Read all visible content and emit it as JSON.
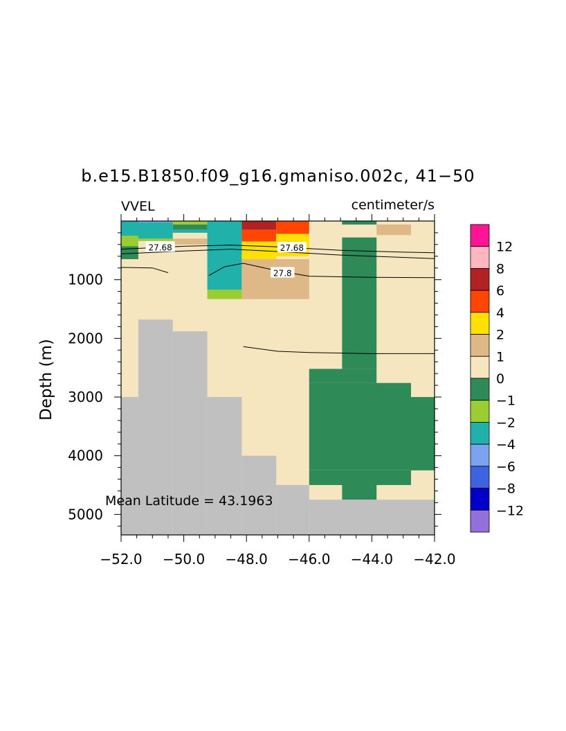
{
  "chart_data": {
    "type": "heatmap",
    "title": "b.e15.B1850.f09_g16.gmaniso.002c, 41−50",
    "variable_label": "VVEL",
    "units_label": "centimeter/s",
    "ylabel": "Depth (m)",
    "xlabel": "",
    "xlim": [
      -52.0,
      -42.0
    ],
    "ylim": [
      5350,
      0
    ],
    "x_ticks": [
      -52.0,
      -50.0,
      -48.0,
      -46.0,
      -44.0,
      -42.0
    ],
    "x_tick_labels": [
      "−52.0",
      "−50.0",
      "−48.0",
      "−46.0",
      "−44.0",
      "−42.0"
    ],
    "y_ticks": [
      1000,
      2000,
      3000,
      4000,
      5000
    ],
    "y_tick_labels": [
      "1000",
      "2000",
      "3000",
      "4000",
      "5000"
    ],
    "annotation": "Mean Latitude = 43.1963",
    "background_field": "0 to 1",
    "land_color": "#c0c0c0",
    "colorbar": {
      "colors": [
        "#ff1493",
        "#ffb6c1",
        "#b22222",
        "#ff4500",
        "#ffe000",
        "#deb887",
        "#f5e6c0",
        "#2e8b57",
        "#9acd32",
        "#20b2aa",
        "#7ba3f0",
        "#3d63e0",
        "#0000c8",
        "#9370db"
      ],
      "labels": [
        "12",
        "8",
        "6",
        "4",
        "2",
        "1",
        "0",
        "−1",
        "−2",
        "−4",
        "−6",
        "−8",
        "−12"
      ]
    },
    "land_columns": [
      {
        "x0": -52.0,
        "x1": -51.45,
        "top": 3000
      },
      {
        "x0": -51.45,
        "x1": -50.35,
        "top": 1680
      },
      {
        "x0": -50.35,
        "x1": -49.25,
        "top": 1880
      },
      {
        "x0": -49.25,
        "x1": -48.15,
        "top": 3000
      },
      {
        "x0": -48.15,
        "x1": -47.05,
        "top": 4000
      },
      {
        "x0": -47.05,
        "x1": -46.0,
        "top": 4500
      },
      {
        "x0": -46.0,
        "x1": -42.0,
        "top": 4750
      }
    ],
    "cells": [
      {
        "x0": -52.0,
        "x1": -50.35,
        "d0": 0,
        "d1": 300,
        "class": "-4"
      },
      {
        "x0": -51.45,
        "x1": -50.35,
        "d0": 0,
        "d1": 25,
        "class": "-6"
      },
      {
        "x0": -52.0,
        "x1": -51.45,
        "d0": 250,
        "d1": 430,
        "class": "-2"
      },
      {
        "x0": -52.0,
        "x1": -51.45,
        "d0": 430,
        "d1": 650,
        "class": "-1"
      },
      {
        "x0": -51.45,
        "x1": -50.35,
        "d0": 300,
        "d1": 340,
        "class": "-2"
      },
      {
        "x0": -50.35,
        "x1": -49.25,
        "d0": 0,
        "d1": 60,
        "class": "-2"
      },
      {
        "x0": -50.35,
        "x1": -49.25,
        "d0": 60,
        "d1": 150,
        "class": "-1"
      },
      {
        "x0": -50.35,
        "x1": -49.25,
        "d0": 150,
        "d1": 200,
        "class": "-4"
      },
      {
        "x0": -50.35,
        "x1": -49.25,
        "d0": 300,
        "d1": 400,
        "class": "1"
      },
      {
        "x0": -49.25,
        "x1": -48.15,
        "d0": 0,
        "d1": 1170,
        "class": "-4"
      },
      {
        "x0": -49.25,
        "x1": -48.15,
        "d0": 1170,
        "d1": 1330,
        "class": "-2"
      },
      {
        "x0": -48.15,
        "x1": -47.05,
        "d0": 0,
        "d1": 150,
        "class": "6"
      },
      {
        "x0": -48.15,
        "x1": -47.05,
        "d0": 150,
        "d1": 350,
        "class": "4"
      },
      {
        "x0": -48.15,
        "x1": -47.05,
        "d0": 350,
        "d1": 650,
        "class": "2"
      },
      {
        "x0": -47.05,
        "x1": -46.0,
        "d0": 0,
        "d1": 220,
        "class": "4"
      },
      {
        "x0": -47.05,
        "x1": -46.0,
        "d0": 220,
        "d1": 600,
        "class": "2"
      },
      {
        "x0": -48.15,
        "x1": -46.0,
        "d0": 650,
        "d1": 1330,
        "class": "1"
      },
      {
        "x0": -44.95,
        "x1": -43.85,
        "d0": 0,
        "d1": 60,
        "class": "-1"
      },
      {
        "x0": -43.85,
        "x1": -42.75,
        "d0": 60,
        "d1": 240,
        "class": "1"
      },
      {
        "x0": -44.95,
        "x1": -43.85,
        "d0": 280,
        "d1": 2520,
        "class": "-1"
      },
      {
        "x0": -46.0,
        "x1": -43.85,
        "d0": 2520,
        "d1": 2760,
        "class": "-1"
      },
      {
        "x0": -46.0,
        "x1": -42.75,
        "d0": 2760,
        "d1": 3000,
        "class": "-1"
      },
      {
        "x0": -46.0,
        "x1": -42.0,
        "d0": 3000,
        "d1": 4250,
        "class": "-1"
      },
      {
        "x0": -46.0,
        "x1": -42.75,
        "d0": 4250,
        "d1": 4500,
        "class": "-1"
      },
      {
        "x0": -44.95,
        "x1": -43.85,
        "d0": 4500,
        "d1": 4750,
        "class": "-1"
      }
    ],
    "contours": [
      {
        "label": "27.68",
        "points": [
          [
            -52.0,
            480
          ],
          [
            -50.0,
            430
          ],
          [
            -48.5,
            410
          ],
          [
            -47.0,
            440
          ],
          [
            -45.0,
            500
          ],
          [
            -43.0,
            530
          ],
          [
            -42.0,
            540
          ]
        ]
      },
      {
        "label": "",
        "points": [
          [
            -52.0,
            560
          ],
          [
            -50.0,
            510
          ],
          [
            -48.5,
            480
          ],
          [
            -47.0,
            520
          ],
          [
            -45.0,
            580
          ],
          [
            -43.0,
            620
          ],
          [
            -42.0,
            640
          ]
        ]
      },
      {
        "label": "",
        "points": [
          [
            -52.0,
            790
          ],
          [
            -51.0,
            800
          ],
          [
            -50.5,
            880
          ]
        ]
      },
      {
        "label": "27.8",
        "points": [
          [
            -49.2,
            930
          ],
          [
            -48.7,
            780
          ],
          [
            -48.1,
            720
          ],
          [
            -47.0,
            850
          ],
          [
            -46.0,
            940
          ],
          [
            -44.0,
            960
          ],
          [
            -42.0,
            965
          ]
        ]
      },
      {
        "label": "",
        "points": [
          [
            -48.1,
            2140
          ],
          [
            -47.0,
            2220
          ],
          [
            -46.0,
            2240
          ],
          [
            -44.0,
            2260
          ],
          [
            -42.0,
            2260
          ]
        ]
      }
    ],
    "contour_labels": [
      {
        "text": "27.68",
        "x": -50.75,
        "d": 440
      },
      {
        "text": "27.68",
        "x": -46.55,
        "d": 450
      },
      {
        "text": "27.8",
        "x": -46.85,
        "d": 880
      }
    ]
  }
}
